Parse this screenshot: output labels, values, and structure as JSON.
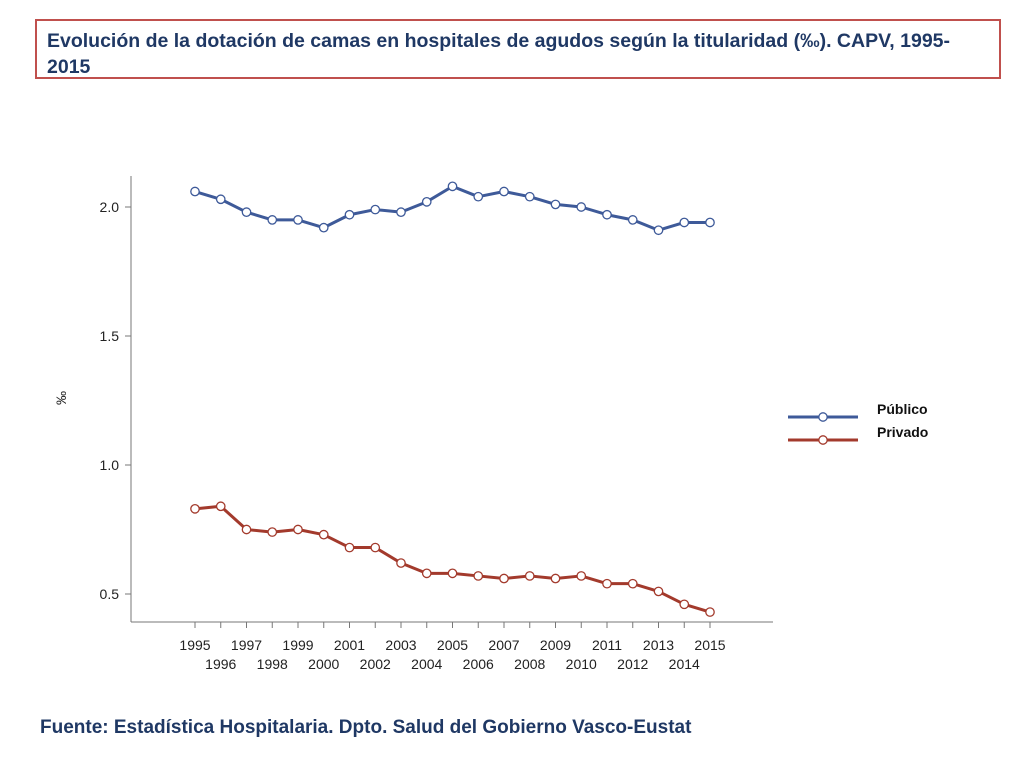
{
  "title": "Evolución de la dotación de camas en hospitales de agudos según la titularidad (‰). CAPV, 1995-2015",
  "source": "Fuente: Estadística Hospitalaria. Dpto. Salud del Gobierno Vasco-Eustat",
  "colors": {
    "publico": "#3e5a99",
    "privado": "#a33a2c",
    "title_border": "#c0504d",
    "title_text": "#1f3864"
  },
  "chart_data": {
    "type": "line",
    "title": "Evolución de la dotación de camas en hospitales de agudos según la titularidad (‰). CAPV, 1995-2015",
    "xlabel": "",
    "ylabel": "‰",
    "ylim": [
      0.4,
      2.13
    ],
    "yticks": [
      0.5,
      1.0,
      1.5,
      2.0
    ],
    "ytick_labels": [
      "0.5",
      "1.0",
      "1.5",
      "2.0"
    ],
    "grid": false,
    "legend_position": "right",
    "categories": [
      "1995",
      "1996",
      "1997",
      "1998",
      "1999",
      "2000",
      "2001",
      "2002",
      "2003",
      "2004",
      "2005",
      "2006",
      "2007",
      "2008",
      "2009",
      "2010",
      "2011",
      "2012",
      "2013",
      "2014",
      "2015"
    ],
    "series": [
      {
        "name": "Público",
        "color": "#3e5a99",
        "values": [
          2.06,
          2.03,
          1.98,
          1.95,
          1.95,
          1.92,
          1.97,
          1.99,
          1.98,
          2.02,
          2.08,
          2.04,
          2.06,
          2.04,
          2.01,
          2.0,
          1.97,
          1.95,
          1.91,
          1.94,
          1.94
        ]
      },
      {
        "name": "Privado",
        "color": "#a33a2c",
        "values": [
          0.83,
          0.84,
          0.75,
          0.74,
          0.75,
          0.73,
          0.68,
          0.68,
          0.62,
          0.58,
          0.58,
          0.57,
          0.56,
          0.57,
          0.56,
          0.57,
          0.54,
          0.54,
          0.51,
          0.46,
          0.43
        ]
      }
    ]
  }
}
